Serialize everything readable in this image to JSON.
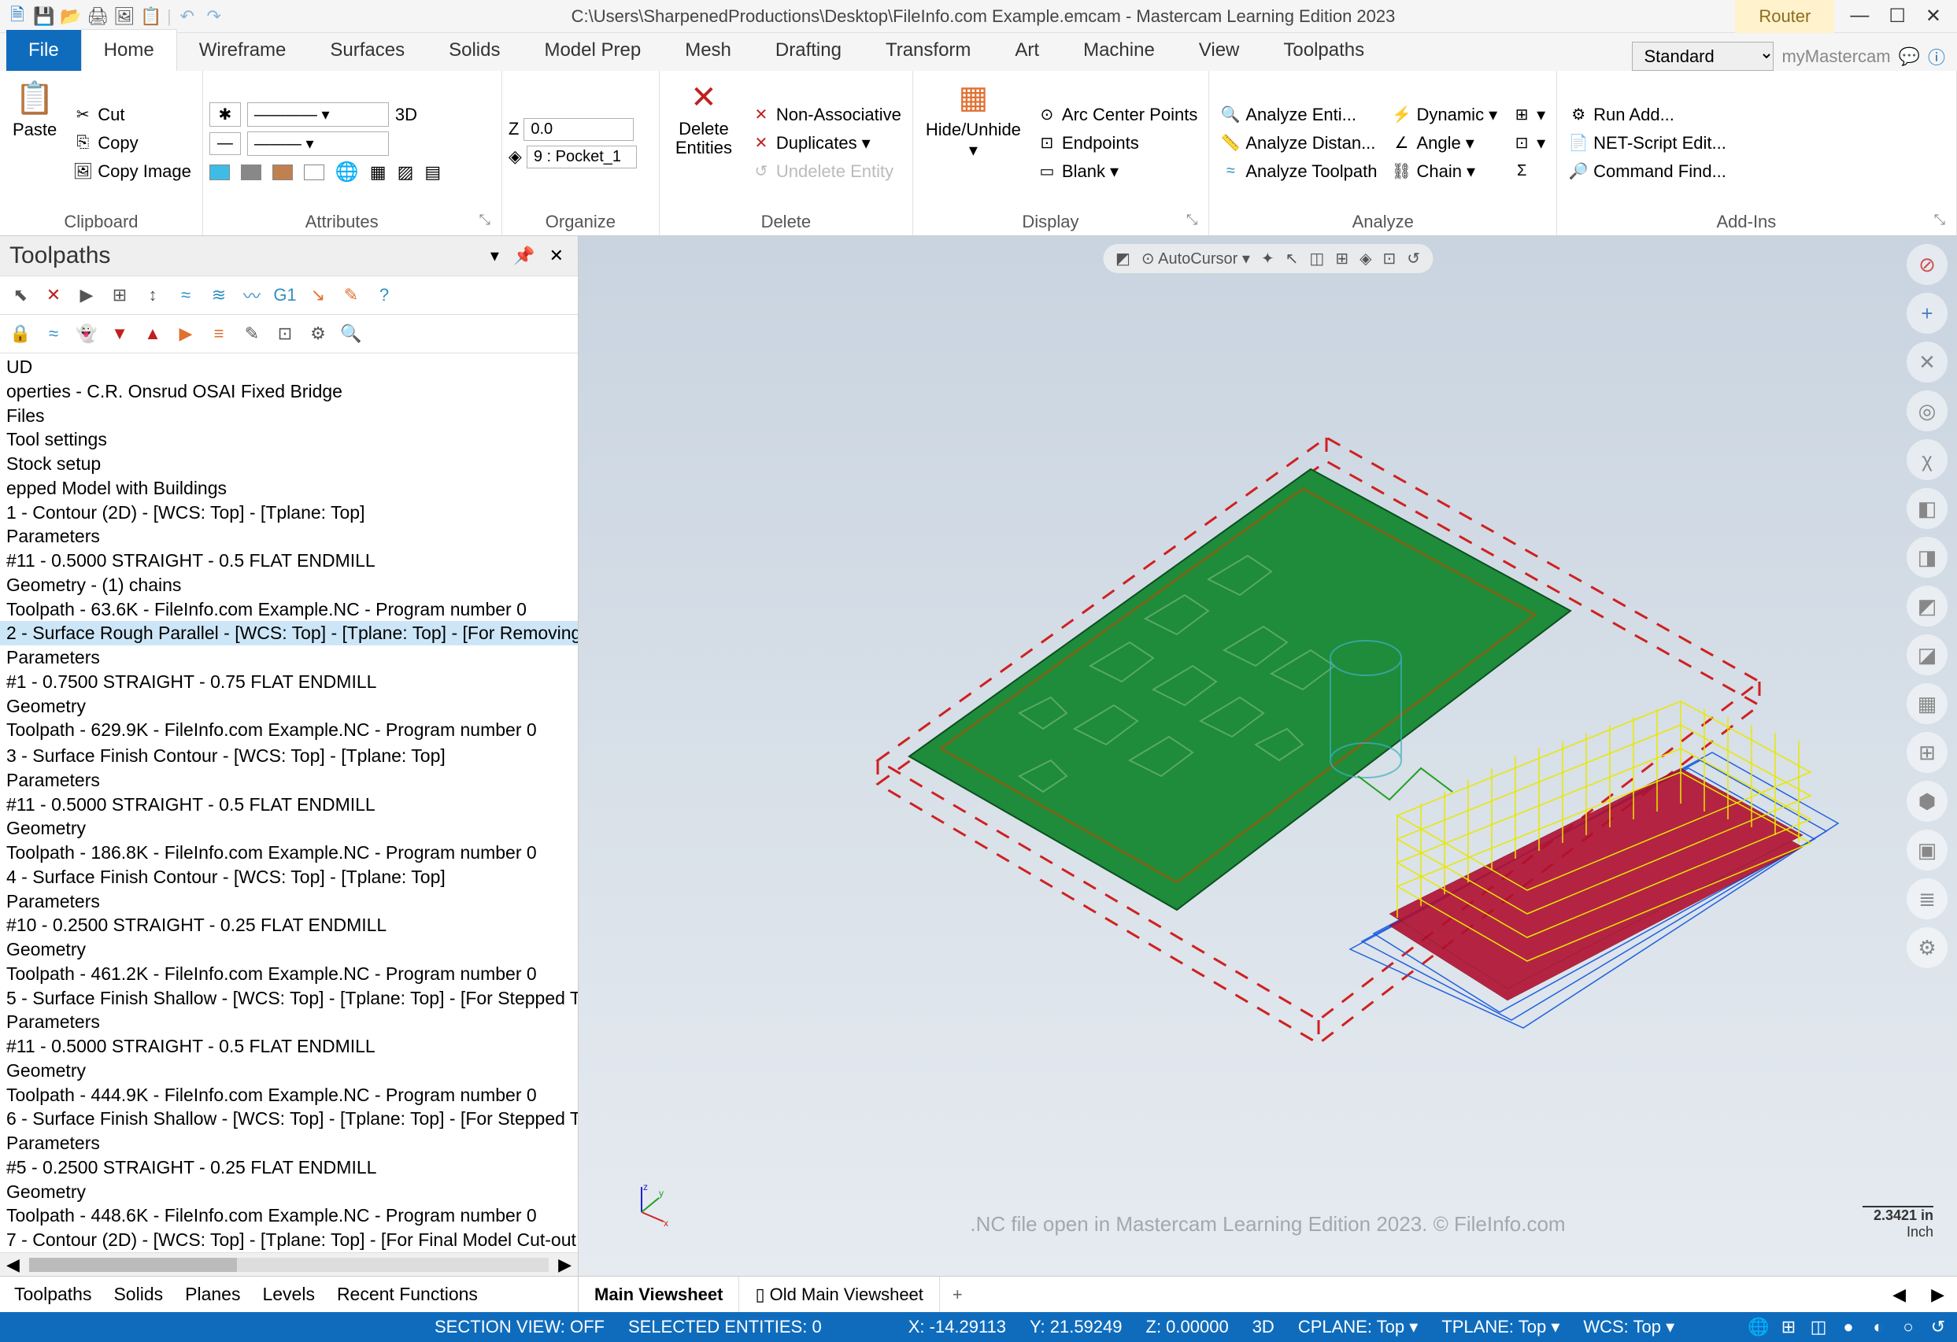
{
  "title_path": "C:\\Users\\SharpenedProductions\\Desktop\\FileInfo.com Example.emcam - Mastercam Learning Edition 2023",
  "context_tab": "Router",
  "ribbon": {
    "tabs": [
      "File",
      "Home",
      "Wireframe",
      "Surfaces",
      "Solids",
      "Model Prep",
      "Mesh",
      "Drafting",
      "Transform",
      "Art",
      "Machine",
      "View",
      "Toolpaths"
    ],
    "active_tab": "Home",
    "template": "Standard",
    "my_mc": "myMastercam"
  },
  "clipboard": {
    "paste": "Paste",
    "cut": "Cut",
    "copy": "Copy",
    "copy_image": "Copy Image",
    "label": "Clipboard"
  },
  "attributes": {
    "threeD": "3D",
    "label": "Attributes"
  },
  "organize": {
    "z_label": "Z",
    "z_val": "0.0",
    "level": "9 : Pocket_1",
    "label": "Organize"
  },
  "delete": {
    "delete_entities": "Delete Entities",
    "non_assoc": "Non-Associative",
    "duplicates": "Duplicates",
    "undelete": "Undelete Entity",
    "label": "Delete"
  },
  "display": {
    "hide": "Hide/Unhide",
    "arc": "Arc Center Points",
    "endpoints": "Endpoints",
    "blank": "Blank",
    "label": "Display"
  },
  "analyze": {
    "entity": "Analyze Enti...",
    "distance": "Analyze Distan...",
    "toolpath": "Analyze Toolpath",
    "dynamic": "Dynamic",
    "angle": "Angle",
    "chain": "Chain",
    "label": "Analyze"
  },
  "addins": {
    "run": "Run Add...",
    "net": "NET-Script Edit...",
    "cmd": "Command Find...",
    "label": "Add-Ins"
  },
  "side": {
    "title": "Toolpaths",
    "tree": [
      "UD",
      "operties - C.R. Onsrud OSAI Fixed Bridge",
      "  Files",
      "  Tool settings",
      "  Stock setup",
      "epped Model with Buildings",
      "  1 - Contour (2D) - [WCS: Top] - [Tplane: Top]",
      "    Parameters",
      "    #11 - 0.5000 STRAIGHT - 0.5 FLAT ENDMILL",
      "    Geometry - (1) chains",
      "    Toolpath - 63.6K - FileInfo.com Example.NC - Program number 0",
      "  2 - Surface Rough Parallel - [WCS: Top] - [Tplane: Top] - [For Removing",
      "    Parameters",
      "    #1 - 0.7500 STRAIGHT - 0.75 FLAT ENDMILL",
      "    Geometry",
      "    Toolpath - 629.9K - FileInfo.com Example.NC - Program number 0",
      "",
      "  3 - Surface Finish Contour - [WCS: Top] - [Tplane: Top]",
      "    Parameters",
      "    #11 - 0.5000 STRAIGHT - 0.5 FLAT ENDMILL",
      "    Geometry",
      "    Toolpath - 186.8K - FileInfo.com Example.NC - Program number 0",
      "  4 - Surface Finish Contour - [WCS: Top] - [Tplane: Top]",
      "    Parameters",
      "    #10 - 0.2500 STRAIGHT - 0.25 FLAT ENDMILL",
      "    Geometry",
      "    Toolpath - 461.2K - FileInfo.com Example.NC - Program number 0",
      "  5 - Surface Finish Shallow - [WCS: Top] - [Tplane: Top] - [For Stepped T",
      "    Parameters",
      "    #11 - 0.5000 STRAIGHT - 0.5 FLAT ENDMILL",
      "    Geometry",
      "    Toolpath - 444.9K - FileInfo.com Example.NC - Program number 0",
      "  6 - Surface Finish Shallow - [WCS: Top] - [Tplane: Top] - [For Stepped T",
      "    Parameters",
      "    #5 - 0.2500 STRAIGHT - 0.25 FLAT ENDMILL",
      "    Geometry",
      "    Toolpath - 448.6K - FileInfo.com Example.NC - Program number 0",
      "  7 - Contour (2D) - [WCS: Top] - [Tplane: Top] - [For Final Model Cut-out",
      "    Parameters"
    ],
    "selected_idx": 11,
    "bottom_tabs": [
      "Toolpaths",
      "Solids",
      "Planes",
      "Levels",
      "Recent Functions"
    ]
  },
  "viewport": {
    "autocursor": "AutoCursor",
    "watermark": ".NC file open in Mastercam Learning Edition 2023. © FileInfo.com",
    "scale": "2.3421 in",
    "scale_unit": "Inch"
  },
  "viewsheets": {
    "main": "Main Viewsheet",
    "old": "Old Main Viewsheet"
  },
  "status": {
    "section": "SECTION VIEW: OFF",
    "selected": "SELECTED ENTITIES: 0",
    "x": "X:   -14.29113",
    "y": "Y:   21.59249",
    "z": "Z:   0.00000",
    "threeD": "3D",
    "cplane": "CPLANE: Top",
    "tplane": "TPLANE: Top",
    "wcs": "WCS: Top"
  },
  "colors": {
    "accent": "#0f6cbd",
    "green": "#1e8c3a",
    "stock": "#d02020",
    "tp_yellow": "#e8e800",
    "tp_blue": "#2060e0",
    "tp_red": "#b01030"
  }
}
